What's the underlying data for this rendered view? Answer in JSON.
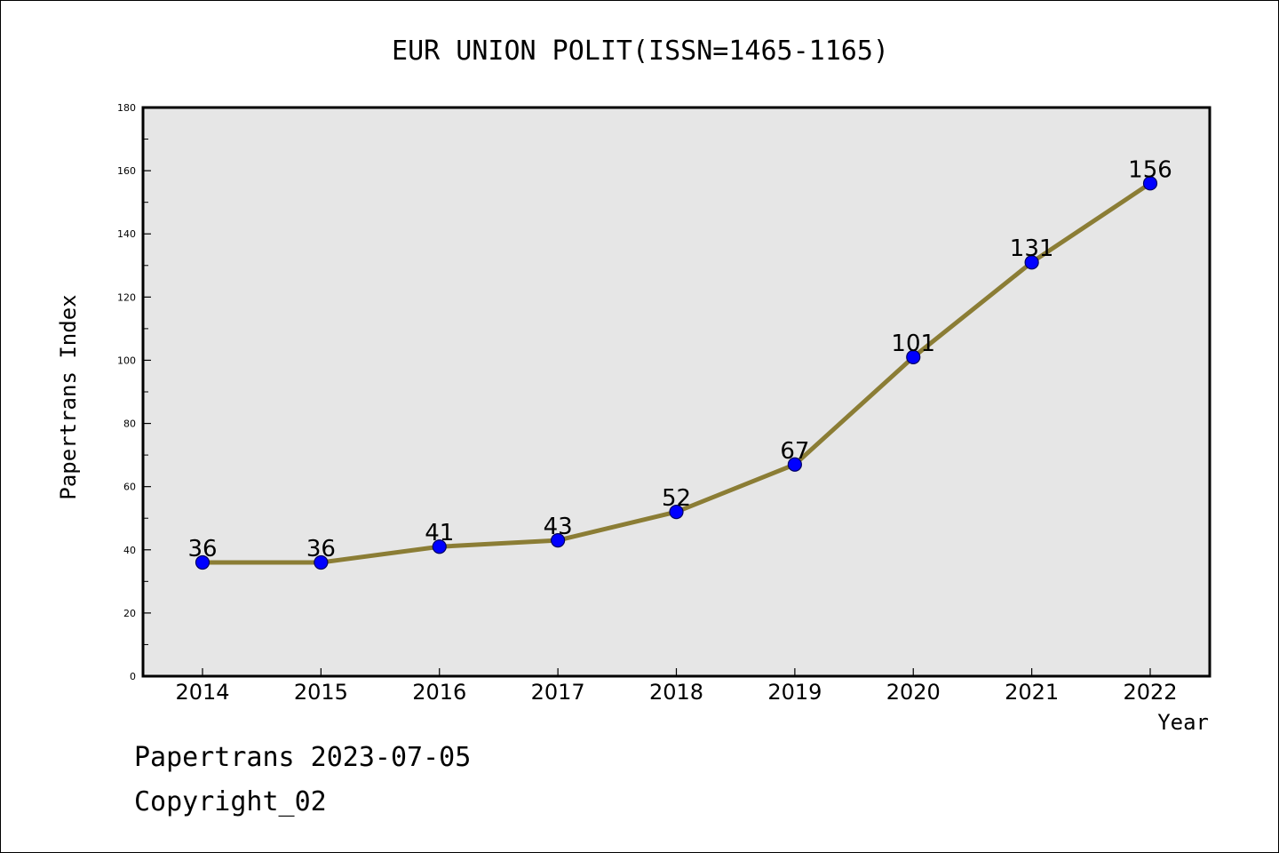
{
  "chart_data": {
    "type": "line",
    "title": "EUR UNION POLIT(ISSN=1465-1165)",
    "xlabel": "Year",
    "ylabel": "Papertrans Index",
    "categories": [
      "2014",
      "2015",
      "2016",
      "2017",
      "2018",
      "2019",
      "2020",
      "2021",
      "2022"
    ],
    "values": [
      36,
      36,
      41,
      43,
      52,
      67,
      101,
      131,
      156
    ],
    "ylim": [
      0,
      180
    ],
    "yticks": [
      0,
      20,
      40,
      60,
      80,
      100,
      120,
      140,
      160,
      180
    ],
    "grid": false,
    "legend": "none",
    "colors": {
      "line": "#8b7d35",
      "marker_fill": "#0000ff",
      "marker_edge": "#000060",
      "plot_background": "#e6e6e6"
    }
  },
  "footer": {
    "date_label": "Papertrans 2023-07-05",
    "copyright": "Copyright_02"
  }
}
